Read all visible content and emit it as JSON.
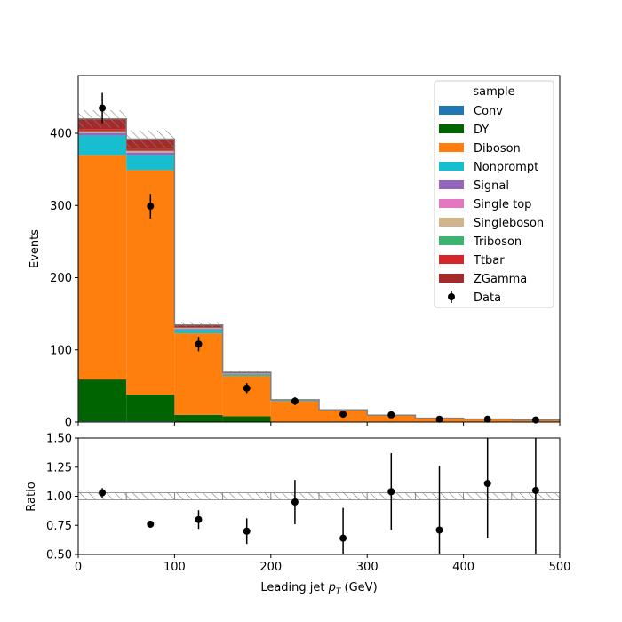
{
  "chart_data": {
    "type": "bar",
    "bin_edges": [
      0,
      50,
      100,
      150,
      200,
      250,
      300,
      350,
      400,
      450,
      500
    ],
    "xlabel_text": "Leading jet ",
    "xlabel_math": "p",
    "xlabel_sub": "T",
    "xlabel_unit": " (GeV)",
    "xlim": [
      0,
      500
    ],
    "xticks": [
      0,
      100,
      200,
      300,
      400,
      500
    ],
    "main": {
      "ylabel": "Events",
      "ylim": [
        0,
        480
      ],
      "yticks": [
        0,
        100,
        200,
        300,
        400
      ],
      "legend_title": "sample",
      "legend_position": "top-right",
      "series": [
        {
          "name": "Conv",
          "color": "#1f77b4",
          "values": [
            1,
            1,
            0,
            0,
            0,
            0,
            0,
            0,
            0,
            0
          ]
        },
        {
          "name": "DY",
          "color": "#006400",
          "values": [
            58,
            37,
            10,
            8,
            0,
            0,
            0,
            0,
            0,
            0
          ]
        },
        {
          "name": "Diboson",
          "color": "#ff7f0e",
          "values": [
            311,
            311,
            113,
            56,
            29,
            16,
            9,
            5,
            4,
            3
          ]
        },
        {
          "name": "Nonprompt",
          "color": "#17becf",
          "values": [
            27,
            21,
            5,
            2,
            1,
            0.5,
            0.3,
            0.2,
            0.1,
            0.1
          ]
        },
        {
          "name": "Signal",
          "color": "#9467bd",
          "values": [
            3,
            3,
            1,
            0.5,
            0.3,
            0.2,
            0.1,
            0.1,
            0,
            0
          ]
        },
        {
          "name": "Single top",
          "color": "#e377c2",
          "values": [
            1,
            1,
            0.5,
            0.2,
            0,
            0,
            0,
            0,
            0,
            0
          ]
        },
        {
          "name": "Singleboson",
          "color": "#d2b48c",
          "values": [
            1,
            1,
            0.5,
            0.2,
            0,
            0,
            0,
            0,
            0,
            0
          ]
        },
        {
          "name": "Triboson",
          "color": "#3cb371",
          "values": [
            1,
            1,
            0.5,
            0.3,
            0.2,
            0.1,
            0.1,
            0.1,
            0,
            0
          ]
        },
        {
          "name": "Ttbar",
          "color": "#d62728",
          "values": [
            3,
            2,
            1,
            0.3,
            0.2,
            0.1,
            0,
            0,
            0,
            0
          ]
        },
        {
          "name": "ZGamma",
          "color": "#a52a2a",
          "values": [
            14,
            14,
            3,
            1.5,
            0.3,
            0.1,
            0.1,
            0,
            0,
            0
          ]
        }
      ],
      "uncertainty": [
        12,
        12,
        4,
        2,
        1,
        0.5,
        0.3,
        0.2,
        0.15,
        0.1
      ],
      "data": {
        "name": "Data",
        "values": [
          435,
          299,
          108,
          47,
          29,
          11,
          10,
          4,
          4,
          3
        ],
        "errors": [
          21,
          17,
          10,
          7,
          5.4,
          3.3,
          3.2,
          2,
          2,
          1.7
        ]
      }
    },
    "ratio": {
      "ylabel": "Ratio",
      "ylim": [
        0.5,
        1.5
      ],
      "yticks": [
        0.5,
        0.75,
        1.0,
        1.25,
        1.5
      ],
      "ytick_labels": [
        "0.50",
        "0.75",
        "1.00",
        "1.25",
        "1.50"
      ],
      "band": [
        0.03,
        0.03,
        0.03,
        0.03,
        0.03,
        0.03,
        0.03,
        0.03,
        0.03,
        0.03
      ],
      "values": [
        1.03,
        0.76,
        0.8,
        0.7,
        0.95,
        0.64,
        1.04,
        0.71,
        1.11,
        1.05
      ],
      "errors": [
        0.04,
        0.03,
        0.08,
        0.11,
        0.19,
        0.26,
        0.33,
        0.55,
        0.47,
        0.55
      ]
    }
  }
}
